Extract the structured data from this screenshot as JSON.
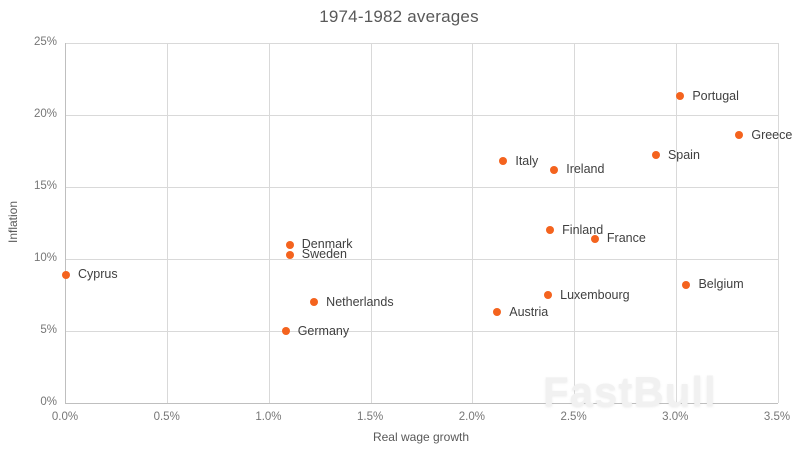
{
  "watermark": "FastBull",
  "colors": {
    "point": "#f4631e",
    "grid": "#d9d9d9",
    "axis": "#bfbfbf",
    "title_text": "#595959",
    "tick_text": "#767676",
    "label_text": "#404040",
    "watermark_text": "#f1f1f1"
  },
  "chart_data": {
    "type": "scatter",
    "title": "1974-1982 averages",
    "xlabel": "Real wage growth",
    "ylabel": "Inflation",
    "xlim": [
      0,
      3.5
    ],
    "ylim": [
      0,
      25
    ],
    "x_ticks": [
      "0.0%",
      "0.5%",
      "1.0%",
      "1.5%",
      "2.0%",
      "2.5%",
      "3.0%",
      "3.5%"
    ],
    "y_ticks": [
      "0%",
      "5%",
      "10%",
      "15%",
      "20%",
      "25%"
    ],
    "grid": true,
    "legend": "none",
    "points": [
      {
        "label": "Cyprus",
        "x": 0.0,
        "y": 8.9
      },
      {
        "label": "Germany",
        "x": 1.08,
        "y": 5.0
      },
      {
        "label": "Sweden",
        "x": 1.1,
        "y": 10.3
      },
      {
        "label": "Denmark",
        "x": 1.1,
        "y": 11.0
      },
      {
        "label": "Netherlands",
        "x": 1.22,
        "y": 7.0
      },
      {
        "label": "Austria",
        "x": 2.12,
        "y": 6.3
      },
      {
        "label": "Italy",
        "x": 2.15,
        "y": 16.8
      },
      {
        "label": "Luxembourg",
        "x": 2.37,
        "y": 7.5
      },
      {
        "label": "Finland",
        "x": 2.38,
        "y": 12.0
      },
      {
        "label": "Ireland",
        "x": 2.4,
        "y": 16.2
      },
      {
        "label": "France",
        "x": 2.6,
        "y": 11.4
      },
      {
        "label": "Spain",
        "x": 2.9,
        "y": 17.2
      },
      {
        "label": "Portugal",
        "x": 3.02,
        "y": 21.3
      },
      {
        "label": "Belgium",
        "x": 3.05,
        "y": 8.2
      },
      {
        "label": "Greece",
        "x": 3.31,
        "y": 18.6
      }
    ]
  }
}
